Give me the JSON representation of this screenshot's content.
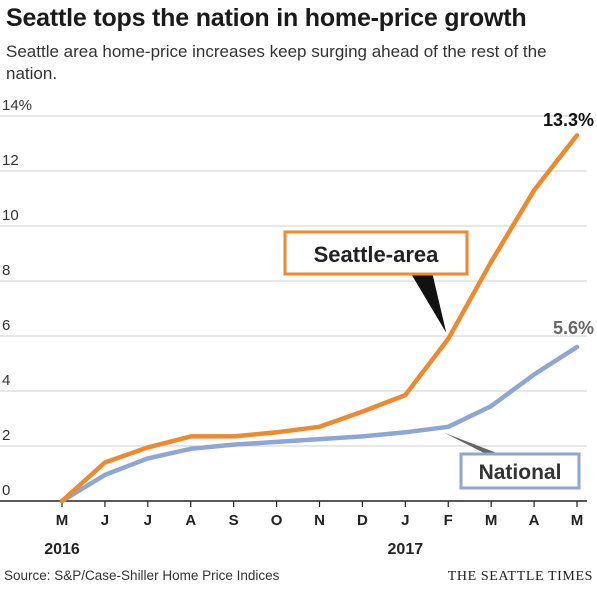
{
  "header": {
    "title": "Seattle tops the nation in home-price growth",
    "subtitle": "Seattle area home-price increases keep surging ahead of the rest of the nation."
  },
  "footer": {
    "source": "Source: S&P/Case-Shiller Home Price Indices",
    "brand": "THE SEATTLE TIMES"
  },
  "colors": {
    "seattle": "#ee8a2e",
    "national": "#8ea6d4"
  },
  "chart_data": {
    "type": "line",
    "categories": [
      "M",
      "J",
      "J",
      "A",
      "S",
      "O",
      "N",
      "D",
      "J",
      "F",
      "M",
      "A",
      "M"
    ],
    "year_labels": [
      {
        "index": 0,
        "label": "2016"
      },
      {
        "index": 8,
        "label": "2017"
      }
    ],
    "ylim": [
      0,
      14
    ],
    "yticks": [
      0,
      2,
      4,
      6,
      8,
      10,
      12,
      14
    ],
    "ytick_labels": [
      "0",
      "2",
      "4",
      "6",
      "8",
      "10",
      "12",
      "14%"
    ],
    "series": [
      {
        "name": "Seattle-area",
        "values": [
          0,
          1.4,
          1.95,
          2.35,
          2.35,
          2.5,
          2.7,
          3.25,
          3.85,
          5.9,
          8.7,
          11.3,
          13.3
        ],
        "end_label": "13.3%"
      },
      {
        "name": "National",
        "values": [
          0,
          0.95,
          1.55,
          1.9,
          2.05,
          2.15,
          2.25,
          2.35,
          2.5,
          2.7,
          3.45,
          4.6,
          5.6
        ],
        "end_label": "5.6%"
      }
    ],
    "grid": true,
    "legend": "inline callouts"
  }
}
